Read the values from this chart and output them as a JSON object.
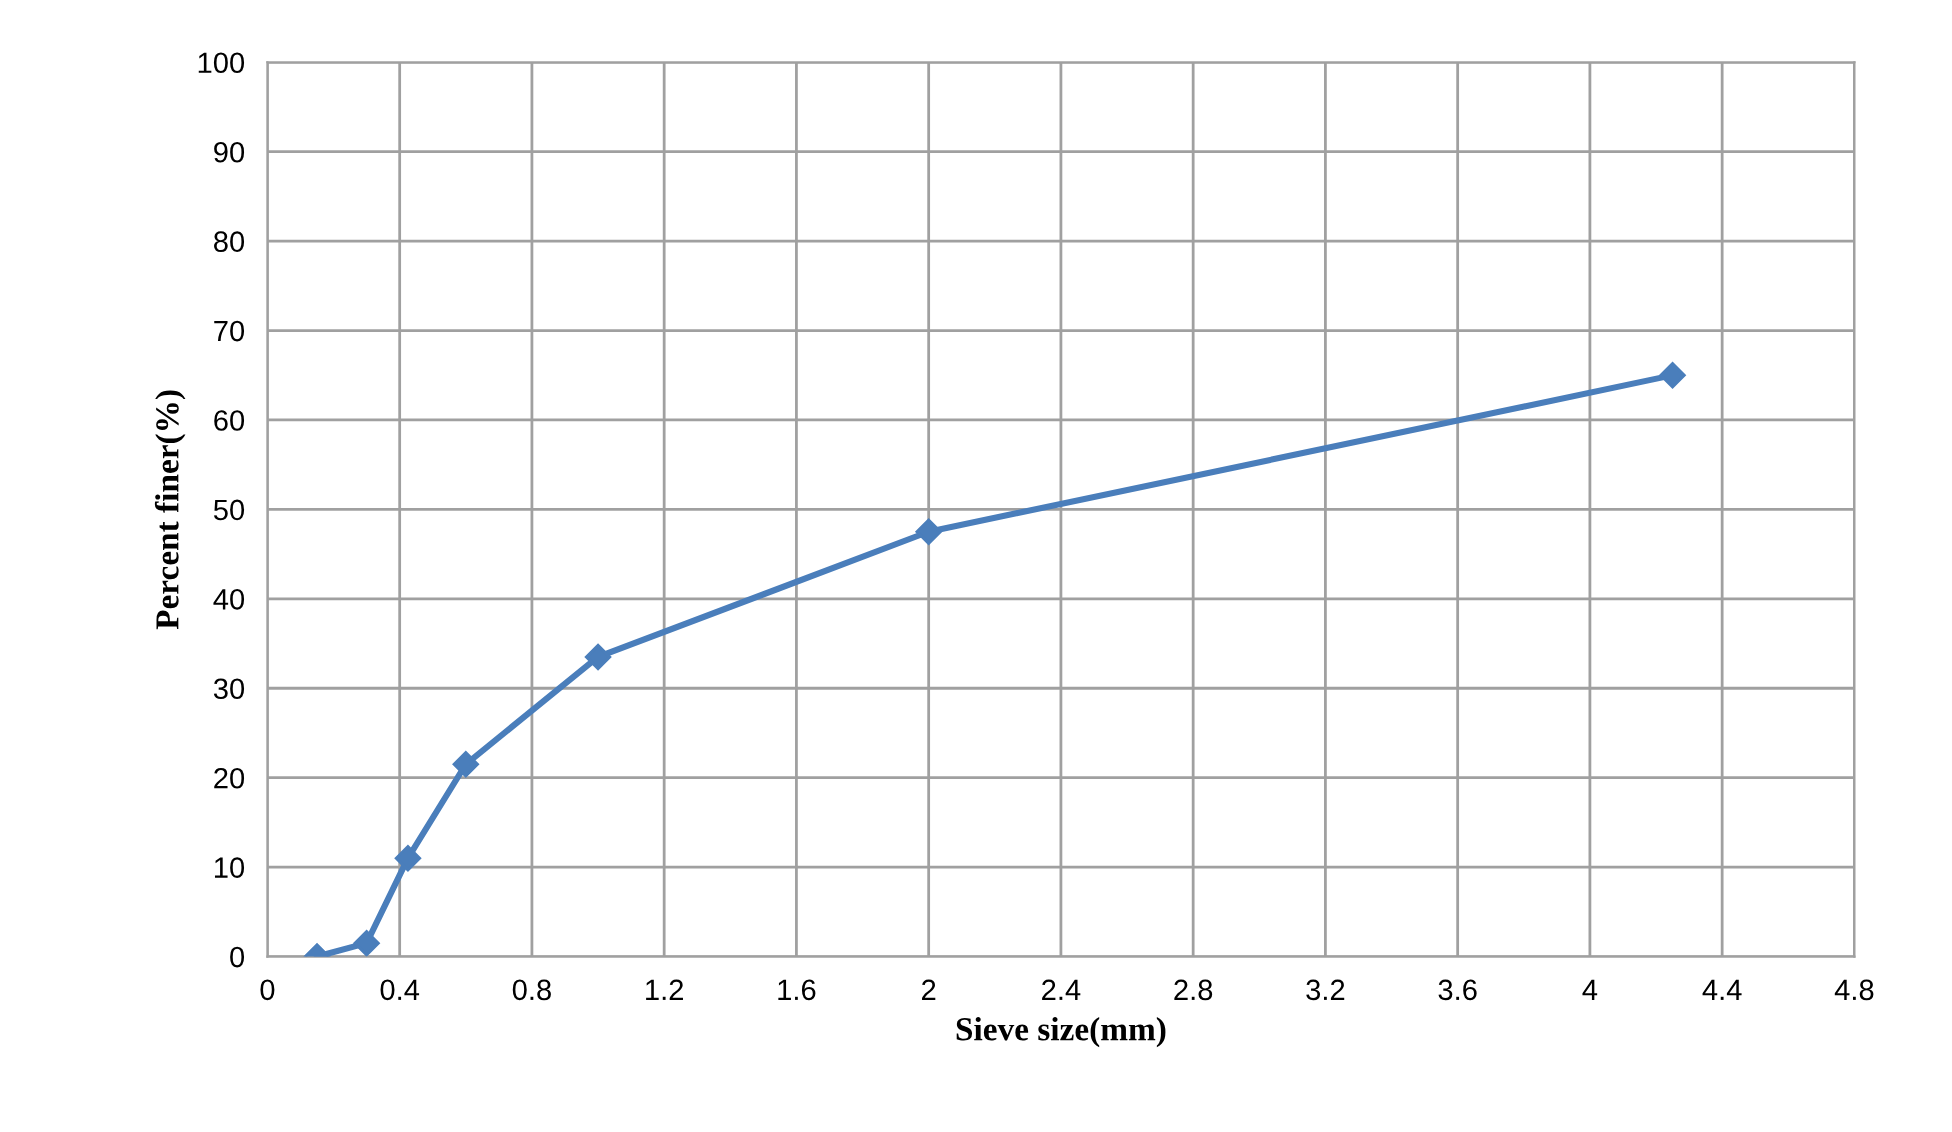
{
  "chart_data": {
    "type": "line",
    "xlabel": "Sieve size(mm)",
    "ylabel": "Percent finer(%)",
    "x": [
      0.15,
      0.3,
      0.425,
      0.6,
      1.0,
      2.0,
      4.25
    ],
    "series": [
      {
        "color": "#4a7ebb",
        "values": [
          0,
          1.5,
          11,
          21.5,
          33.5,
          47.5,
          65
        ]
      }
    ],
    "xlim": [
      0,
      4.8
    ],
    "xticks": [
      0,
      0.4,
      0.8,
      1.2,
      1.6,
      2,
      2.4,
      2.8,
      3.2,
      3.6,
      4,
      4.4,
      4.8
    ],
    "ylim": [
      0,
      100
    ],
    "yticks": [
      0,
      10,
      20,
      30,
      40,
      50,
      60,
      70,
      80,
      90,
      100
    ],
    "grid": true,
    "marker": "diamond",
    "line_style": "solid"
  }
}
